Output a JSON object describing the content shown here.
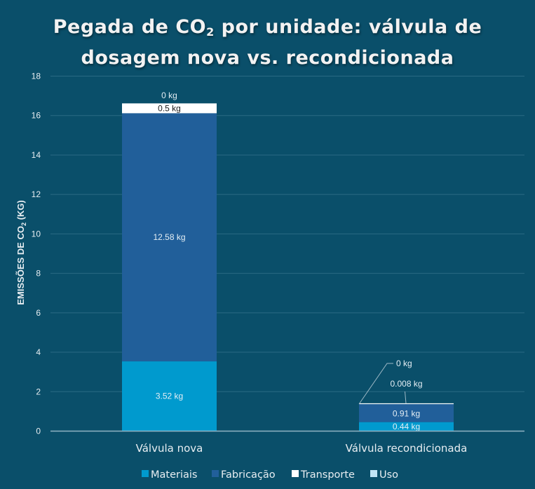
{
  "title_parts": {
    "a": "Pegada de CO",
    "sub": "2",
    "b": " por unidade: válvula de",
    "c": "dosagem nova vs. recondicionada"
  },
  "chart_data": {
    "type": "bar",
    "stacked": true,
    "title": "Pegada de CO2 por unidade: válvula de dosagem nova vs. recondicionada",
    "xlabel": "",
    "ylabel": "EMISSÕES DE CO2 (KG)",
    "ylabel_parts": {
      "a": "EMISSÕES DE CO",
      "sub": "2",
      "b": " (KG)"
    },
    "ylim": [
      0,
      18
    ],
    "yticks": [
      "0",
      "2",
      "4",
      "6",
      "8",
      "10",
      "12",
      "14",
      "16",
      "18"
    ],
    "grid": true,
    "legend_position": "bottom",
    "categories": [
      "Válvula nova",
      "Válvula recondicionada"
    ],
    "series": [
      {
        "name": "Materiais",
        "color": "#009ace",
        "values": [
          3.52,
          0.44
        ],
        "labels": [
          "3.52 kg",
          "0.44 kg"
        ]
      },
      {
        "name": "Fabricação",
        "color": "#215f9a",
        "values": [
          12.58,
          0.91
        ],
        "labels": [
          "12.58 kg",
          "0.91 kg"
        ]
      },
      {
        "name": "Transporte",
        "color": "#ffffff",
        "values": [
          0.5,
          0.008
        ],
        "labels": [
          "0.5 kg",
          "0.008 kg"
        ]
      },
      {
        "name": "Uso",
        "color": "#c0e4f5",
        "values": [
          0,
          0
        ],
        "labels": [
          "0 kg",
          "0 kg"
        ]
      }
    ]
  }
}
